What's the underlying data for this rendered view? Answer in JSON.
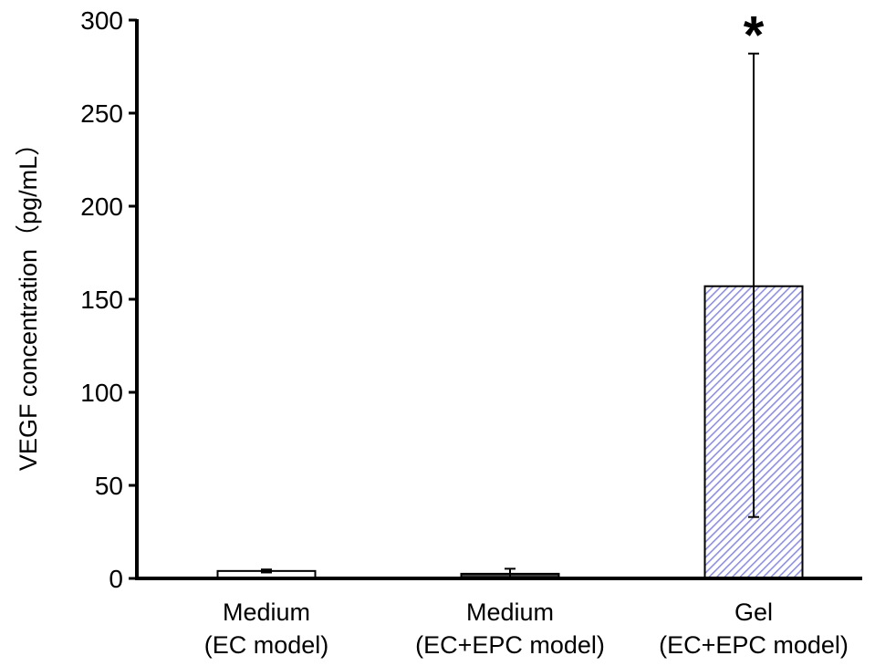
{
  "chart_data": {
    "type": "bar",
    "title": "",
    "xlabel": "",
    "ylabel": "VEGF concentration（pg/mL）",
    "ylim": [
      0,
      300
    ],
    "yticks": [
      0,
      50,
      100,
      150,
      200,
      250,
      300
    ],
    "grid": false,
    "categories": [
      [
        "Medium",
        "(EC model)"
      ],
      [
        "Medium",
        "(EC+EPC model)"
      ],
      [
        "Gel",
        "(EC+EPC model)"
      ]
    ],
    "values": [
      4,
      2.5,
      157
    ],
    "error_upper": [
      4.8,
      5.2,
      282
    ],
    "error_lower": [
      3.2,
      0,
      33
    ],
    "bar_styles": [
      "white",
      "dark",
      "hatched-blue"
    ],
    "annotations": [
      {
        "category_index": 2,
        "text": "*"
      }
    ],
    "colors": {
      "axis": "#000000",
      "bar_edge": "#000000",
      "white_fill": "#ffffff",
      "dark_fill": "#3a3a3a",
      "hatch_line": "#8f8fe0"
    }
  }
}
